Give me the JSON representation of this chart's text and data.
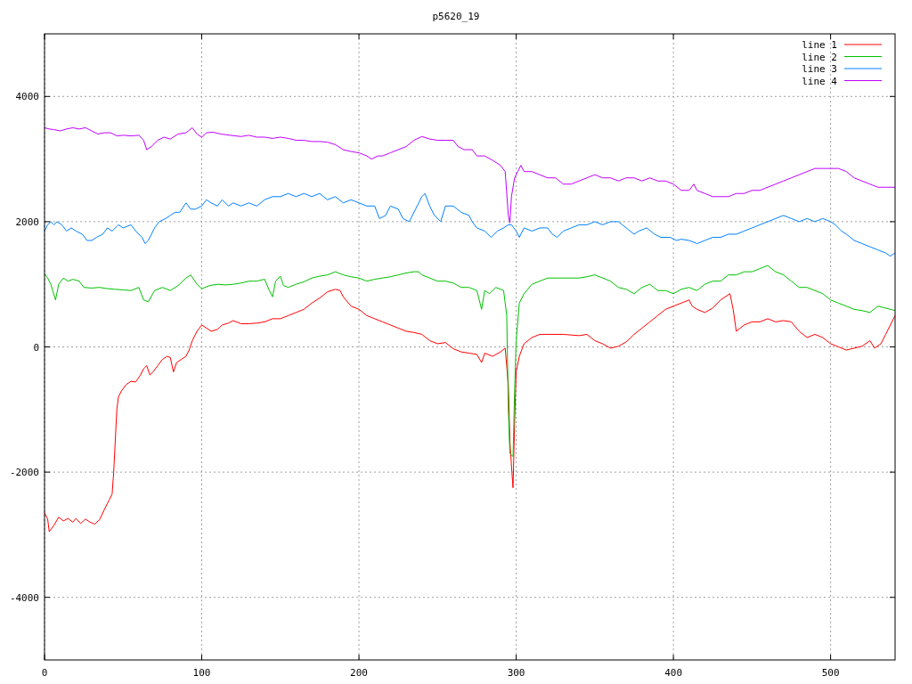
{
  "chart_data": {
    "type": "line",
    "title": "p5620_19",
    "xlim": [
      0,
      541
    ],
    "ylim": [
      -5000,
      5000
    ],
    "xticks": [
      0,
      100,
      200,
      300,
      400,
      500
    ],
    "yticks": [
      -4000,
      -2000,
      0,
      2000,
      4000
    ],
    "grid": true,
    "legend": "top right",
    "marker": "none",
    "line_style": "solid",
    "series": [
      {
        "name": "line 1",
        "color": "#ff0000",
        "x": [
          0,
          2,
          3,
          6,
          9,
          12,
          15,
          18,
          20,
          23,
          26,
          29,
          32,
          35,
          38,
          41,
          43,
          44,
          45,
          46,
          47,
          49,
          52,
          55,
          58,
          61,
          63,
          65,
          67,
          69,
          72,
          75,
          78,
          80,
          82,
          84,
          87,
          90,
          92,
          94,
          97,
          100,
          103,
          106,
          110,
          113,
          117,
          120,
          125,
          130,
          135,
          140,
          145,
          150,
          155,
          160,
          165,
          170,
          175,
          180,
          185,
          188,
          190,
          195,
          200,
          205,
          210,
          215,
          220,
          225,
          230,
          235,
          240,
          245,
          250,
          255,
          260,
          265,
          270,
          275,
          278,
          280,
          285,
          290,
          293,
          295,
          296,
          297,
          298,
          299,
          300,
          302,
          305,
          310,
          315,
          320,
          330,
          340,
          345,
          350,
          355,
          360,
          365,
          370,
          375,
          380,
          385,
          390,
          395,
          400,
          405,
          410,
          412,
          415,
          420,
          425,
          430,
          436,
          438,
          440,
          445,
          450,
          455,
          460,
          465,
          470,
          475,
          480,
          485,
          490,
          495,
          500,
          505,
          510,
          515,
          520,
          525,
          528,
          532,
          535,
          538,
          541
        ],
        "values": [
          -2650,
          -2750,
          -2950,
          -2850,
          -2720,
          -2780,
          -2740,
          -2800,
          -2740,
          -2820,
          -2750,
          -2800,
          -2830,
          -2760,
          -2600,
          -2450,
          -2350,
          -2000,
          -1500,
          -1000,
          -800,
          -700,
          -600,
          -550,
          -560,
          -450,
          -350,
          -300,
          -450,
          -400,
          -300,
          -200,
          -150,
          -170,
          -400,
          -250,
          -200,
          -150,
          -50,
          100,
          250,
          350,
          300,
          250,
          280,
          350,
          380,
          420,
          370,
          370,
          380,
          400,
          450,
          450,
          500,
          550,
          600,
          700,
          780,
          880,
          920,
          900,
          800,
          650,
          600,
          500,
          450,
          400,
          350,
          300,
          250,
          230,
          200,
          100,
          50,
          70,
          -30,
          -80,
          -100,
          -120,
          -250,
          -100,
          -150,
          -80,
          -20,
          -600,
          -1500,
          -1900,
          -2250,
          -1200,
          -400,
          -150,
          50,
          150,
          200,
          200,
          200,
          180,
          200,
          100,
          50,
          -20,
          10,
          80,
          200,
          300,
          400,
          500,
          600,
          650,
          700,
          750,
          650,
          600,
          550,
          620,
          750,
          850,
          600,
          250,
          350,
          400,
          400,
          450,
          400,
          420,
          400,
          250,
          150,
          200,
          150,
          50,
          0,
          -50,
          -20,
          10,
          100,
          -20,
          50,
          200,
          350,
          500
        ]
      },
      {
        "name": "line 2",
        "color": "#00c000",
        "x": [
          0,
          2,
          4,
          7,
          9,
          12,
          15,
          18,
          22,
          25,
          30,
          35,
          40,
          45,
          50,
          55,
          60,
          63,
          66,
          70,
          75,
          80,
          85,
          90,
          93,
          97,
          100,
          105,
          110,
          115,
          120,
          125,
          130,
          135,
          140,
          143,
          145,
          147,
          150,
          152,
          155,
          160,
          165,
          170,
          175,
          180,
          185,
          190,
          195,
          200,
          205,
          210,
          215,
          220,
          225,
          230,
          235,
          238,
          240,
          245,
          250,
          255,
          260,
          265,
          270,
          275,
          278,
          280,
          283,
          287,
          292,
          294,
          295,
          296,
          298,
          299,
          300,
          302,
          305,
          310,
          315,
          320,
          330,
          340,
          345,
          350,
          355,
          360,
          365,
          370,
          375,
          380,
          385,
          390,
          395,
          400,
          405,
          410,
          415,
          420,
          425,
          430,
          435,
          440,
          445,
          450,
          455,
          460,
          465,
          470,
          475,
          480,
          485,
          490,
          495,
          500,
          505,
          510,
          515,
          520,
          525,
          530,
          535,
          541
        ],
        "values": [
          1170,
          1100,
          1000,
          750,
          1000,
          1100,
          1050,
          1080,
          1050,
          950,
          940,
          950,
          930,
          920,
          910,
          900,
          950,
          750,
          720,
          900,
          950,
          900,
          980,
          1100,
          1150,
          1000,
          930,
          980,
          1000,
          990,
          1000,
          1020,
          1050,
          1050,
          1080,
          900,
          800,
          1050,
          1130,
          980,
          950,
          1000,
          1040,
          1100,
          1130,
          1150,
          1200,
          1150,
          1120,
          1100,
          1050,
          1080,
          1100,
          1120,
          1150,
          1180,
          1200,
          1200,
          1150,
          1100,
          1050,
          1050,
          1020,
          950,
          950,
          900,
          600,
          900,
          850,
          950,
          900,
          500,
          -1000,
          -1700,
          -1750,
          -700,
          100,
          700,
          850,
          1000,
          1050,
          1100,
          1100,
          1100,
          1120,
          1150,
          1100,
          1050,
          950,
          920,
          850,
          950,
          1000,
          900,
          900,
          850,
          920,
          950,
          900,
          1000,
          1050,
          1050,
          1150,
          1150,
          1200,
          1200,
          1250,
          1300,
          1200,
          1150,
          1050,
          950,
          950,
          900,
          850,
          750,
          700,
          650,
          600,
          580,
          550,
          650,
          620,
          580
        ]
      },
      {
        "name": "line 3",
        "color": "#0080ff",
        "x": [
          0,
          2,
          4,
          6,
          8,
          11,
          14,
          17,
          20,
          24,
          27,
          30,
          33,
          37,
          40,
          43,
          47,
          50,
          55,
          58,
          62,
          64,
          66,
          70,
          73,
          77,
          80,
          83,
          86,
          90,
          93,
          96,
          100,
          103,
          106,
          110,
          113,
          117,
          120,
          125,
          130,
          135,
          140,
          145,
          150,
          155,
          160,
          165,
          170,
          175,
          180,
          185,
          190,
          195,
          200,
          205,
          210,
          213,
          217,
          220,
          225,
          228,
          232,
          236,
          240,
          242,
          245,
          248,
          252,
          255,
          260,
          265,
          270,
          272,
          275,
          280,
          284,
          288,
          292,
          295,
          297,
          300,
          302,
          305,
          310,
          315,
          320,
          323,
          326,
          330,
          335,
          340,
          345,
          350,
          355,
          360,
          365,
          370,
          375,
          378,
          383,
          388,
          392,
          398,
          402,
          405,
          410,
          415,
          420,
          425,
          430,
          435,
          440,
          445,
          450,
          455,
          460,
          465,
          470,
          475,
          480,
          485,
          490,
          495,
          500,
          503,
          507,
          510,
          515,
          520,
          525,
          530,
          535,
          538,
          541
        ],
        "values": [
          1850,
          1950,
          2000,
          1950,
          2000,
          1950,
          1850,
          1900,
          1850,
          1800,
          1700,
          1700,
          1750,
          1800,
          1900,
          1850,
          1950,
          1900,
          1950,
          1850,
          1750,
          1650,
          1700,
          1900,
          2000,
          2050,
          2100,
          2150,
          2150,
          2300,
          2200,
          2200,
          2250,
          2350,
          2300,
          2250,
          2350,
          2250,
          2300,
          2250,
          2300,
          2250,
          2350,
          2400,
          2400,
          2450,
          2400,
          2450,
          2400,
          2450,
          2350,
          2400,
          2300,
          2350,
          2300,
          2250,
          2250,
          2050,
          2100,
          2250,
          2200,
          2050,
          2000,
          2200,
          2400,
          2450,
          2250,
          2100,
          2000,
          2250,
          2250,
          2150,
          2100,
          2000,
          1900,
          1850,
          1750,
          1850,
          1900,
          1950,
          1950,
          1850,
          1750,
          1900,
          1850,
          1900,
          1900,
          1800,
          1750,
          1850,
          1900,
          1950,
          1950,
          2000,
          1950,
          2000,
          2000,
          1900,
          1800,
          1850,
          1900,
          1800,
          1750,
          1750,
          1700,
          1720,
          1700,
          1650,
          1700,
          1750,
          1750,
          1800,
          1800,
          1850,
          1900,
          1950,
          2000,
          2050,
          2100,
          2050,
          2000,
          2050,
          2000,
          2050,
          2000,
          1950,
          1850,
          1800,
          1700,
          1650,
          1600,
          1550,
          1500,
          1450,
          1500
        ]
      },
      {
        "name": "line 4",
        "color": "#c000ff",
        "x": [
          0,
          3,
          6,
          10,
          14,
          18,
          22,
          26,
          30,
          34,
          38,
          42,
          46,
          50,
          55,
          60,
          63,
          65,
          68,
          72,
          76,
          80,
          85,
          90,
          94,
          97,
          100,
          103,
          107,
          112,
          118,
          125,
          130,
          135,
          140,
          145,
          150,
          155,
          160,
          165,
          170,
          175,
          180,
          185,
          190,
          195,
          200,
          205,
          208,
          212,
          215,
          220,
          225,
          230,
          235,
          240,
          245,
          250,
          255,
          260,
          263,
          267,
          272,
          275,
          280,
          285,
          290,
          293,
          295,
          296,
          297,
          299,
          301,
          303,
          305,
          310,
          315,
          320,
          325,
          330,
          335,
          340,
          345,
          350,
          355,
          360,
          365,
          370,
          375,
          380,
          385,
          390,
          395,
          400,
          405,
          410,
          413,
          415,
          420,
          425,
          430,
          435,
          440,
          445,
          450,
          455,
          460,
          465,
          470,
          475,
          480,
          485,
          490,
          495,
          500,
          505,
          510,
          515,
          520,
          525,
          530,
          535,
          541
        ],
        "values": [
          3500,
          3480,
          3470,
          3450,
          3480,
          3500,
          3480,
          3500,
          3450,
          3400,
          3420,
          3420,
          3370,
          3380,
          3370,
          3380,
          3300,
          3150,
          3200,
          3300,
          3350,
          3320,
          3400,
          3420,
          3500,
          3400,
          3350,
          3420,
          3430,
          3400,
          3380,
          3360,
          3380,
          3350,
          3350,
          3330,
          3350,
          3330,
          3300,
          3300,
          3280,
          3280,
          3270,
          3230,
          3150,
          3120,
          3100,
          3050,
          3000,
          3050,
          3050,
          3100,
          3150,
          3200,
          3300,
          3360,
          3320,
          3300,
          3300,
          3300,
          3200,
          3150,
          3150,
          3050,
          3050,
          2980,
          2900,
          2800,
          2100,
          1980,
          2400,
          2700,
          2800,
          2900,
          2800,
          2800,
          2750,
          2700,
          2700,
          2600,
          2600,
          2650,
          2700,
          2750,
          2700,
          2700,
          2650,
          2700,
          2700,
          2650,
          2700,
          2650,
          2650,
          2600,
          2500,
          2500,
          2600,
          2500,
          2450,
          2400,
          2400,
          2400,
          2450,
          2450,
          2500,
          2500,
          2550,
          2600,
          2650,
          2700,
          2750,
          2800,
          2850,
          2850,
          2850,
          2850,
          2800,
          2700,
          2650,
          2600,
          2550,
          2550,
          2550
        ]
      }
    ]
  }
}
